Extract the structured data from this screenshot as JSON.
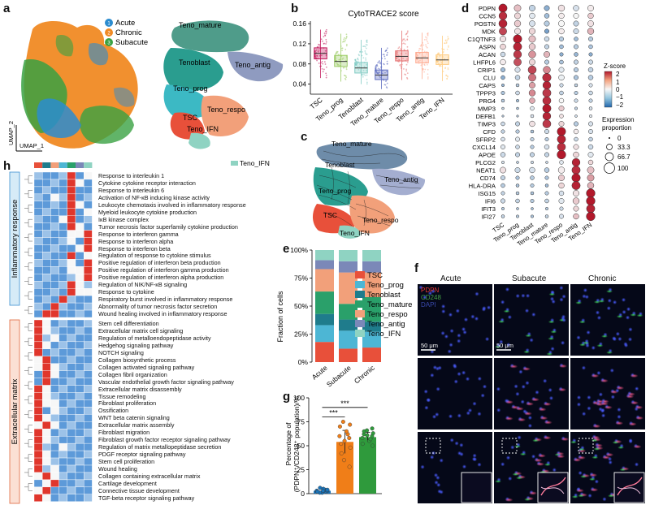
{
  "panels": {
    "a": "a",
    "b": "b",
    "c": "c",
    "d": "d",
    "e": "e",
    "f": "f",
    "g": "g",
    "h": "h"
  },
  "panel_a": {
    "legend": [
      "Acute",
      "Chronic",
      "Subacute"
    ],
    "legend_marks": [
      "1",
      "2",
      "3"
    ],
    "legend_colors": [
      "#2b8ccf",
      "#f08a24",
      "#3aa142"
    ],
    "clusters": [
      "Teno_mature",
      "Tenoblast",
      "Teno_antig",
      "Teno_prog",
      "TSC",
      "Teno_respo",
      "Teno_IFN"
    ],
    "axis_x": "UMAP_1",
    "axis_y": "UMAP_2"
  },
  "panel_c": {
    "clusters": [
      "Teno_mature",
      "Tenoblast",
      "Teno_antig",
      "Teno_prog",
      "TSC",
      "Teno_respo",
      "Teno_IFN"
    ]
  },
  "chart_b": {
    "type": "box",
    "title": "CytoTRACE2 score",
    "categories": [
      "TSC",
      "Teno_prog",
      "Tenoblast",
      "Teno_mature",
      "Teno_respo",
      "Teno_antig",
      "Teno_IFN"
    ],
    "colors": [
      "#c2185b",
      "#9ccc65",
      "#80cbc4",
      "#5c6bc0",
      "#e57373",
      "#ffab91",
      "#ffcc80"
    ],
    "median": [
      0.101,
      0.085,
      0.072,
      0.058,
      0.095,
      0.092,
      0.088
    ],
    "q1": [
      0.09,
      0.075,
      0.062,
      0.049,
      0.086,
      0.082,
      0.079
    ],
    "q3": [
      0.112,
      0.097,
      0.083,
      0.068,
      0.106,
      0.103,
      0.098
    ],
    "whisker_low": [
      0.052,
      0.045,
      0.04,
      0.03,
      0.048,
      0.05,
      0.046
    ],
    "whisker_high": [
      0.148,
      0.14,
      0.128,
      0.112,
      0.146,
      0.142,
      0.136
    ],
    "yticks": [
      0.04,
      0.08,
      0.12,
      0.16
    ],
    "ylim": [
      0.02,
      0.165
    ]
  },
  "chart_d": {
    "type": "dotplot",
    "genes": [
      "PDPN",
      "CCN5",
      "POSTN",
      "MDK",
      "C1QTNF3",
      "ASPN",
      "ACAN",
      "LHFPL6",
      "CRIP1",
      "CLU",
      "CAPS",
      "TPPP3",
      "PRG4",
      "MMP3",
      "DEFB1",
      "TIMP3",
      "CFD",
      "SFRP2",
      "CXCL14",
      "APOE",
      "PLCG2",
      "NEAT1",
      "CD74",
      "HLA-DRA",
      "ISG15",
      "IFI6",
      "IFIT3",
      "IFI27"
    ],
    "clusters": [
      "TSC",
      "Teno_prog",
      "Tenoblast",
      "Teno_mature",
      "Teno_respo",
      "Teno_antig",
      "Teno_IFN"
    ],
    "zscore": [
      [
        2.0,
        0.5,
        -0.5,
        -1.0,
        0.2,
        -0.3,
        0.1
      ],
      [
        1.8,
        0.3,
        -0.2,
        -0.8,
        0.1,
        0.0,
        0.4
      ],
      [
        1.9,
        0.4,
        -0.3,
        -0.6,
        0.0,
        -0.5,
        0.2
      ],
      [
        1.6,
        0.2,
        0.3,
        -1.2,
        0.1,
        -0.4,
        0.6
      ],
      [
        0.2,
        2.0,
        0.5,
        -0.4,
        -0.6,
        -0.8,
        -0.6
      ],
      [
        0.3,
        1.9,
        0.4,
        -0.5,
        -0.8,
        -0.6,
        -0.7
      ],
      [
        -0.4,
        1.7,
        0.9,
        0.6,
        -1.0,
        -0.9,
        -1.0
      ],
      [
        0.1,
        1.5,
        0.3,
        -0.6,
        -0.7,
        -0.5,
        -0.4
      ],
      [
        -0.8,
        -0.3,
        1.6,
        1.0,
        -0.2,
        -0.6,
        -0.5
      ],
      [
        -1.0,
        -0.5,
        1.2,
        1.8,
        -0.1,
        -0.7,
        -0.6
      ],
      [
        -0.9,
        -0.6,
        0.8,
        1.9,
        -0.4,
        -0.5,
        -0.3
      ],
      [
        -0.7,
        -0.4,
        1.0,
        1.7,
        -0.5,
        -0.6,
        -0.4
      ],
      [
        -0.6,
        -0.8,
        0.7,
        1.8,
        0.0,
        -0.4,
        -0.5
      ],
      [
        -0.5,
        -0.7,
        -0.2,
        2.0,
        0.4,
        -0.5,
        -0.3
      ],
      [
        -0.6,
        -0.6,
        -0.3,
        1.9,
        0.2,
        -0.4,
        -0.2
      ],
      [
        -0.4,
        -0.5,
        0.2,
        1.7,
        0.3,
        -0.6,
        -0.3
      ],
      [
        -0.5,
        -0.6,
        -0.7,
        -0.4,
        2.0,
        0.1,
        -0.3
      ],
      [
        -0.3,
        -0.2,
        -0.5,
        -0.6,
        1.9,
        -0.4,
        -0.5
      ],
      [
        -0.2,
        -0.4,
        -0.6,
        -0.3,
        1.8,
        0.2,
        -0.4
      ],
      [
        -0.4,
        -0.5,
        -0.5,
        -0.5,
        2.0,
        0.3,
        -0.2
      ],
      [
        -0.3,
        -0.6,
        -0.4,
        -0.5,
        -0.2,
        1.9,
        0.3
      ],
      [
        0.2,
        -0.4,
        -0.3,
        -0.6,
        0.1,
        1.8,
        0.5
      ],
      [
        -0.5,
        -0.7,
        -0.6,
        -0.7,
        0.4,
        2.0,
        0.8
      ],
      [
        -0.6,
        -0.7,
        -0.6,
        -0.8,
        0.3,
        1.9,
        0.6
      ],
      [
        -0.5,
        -0.6,
        -0.7,
        -0.6,
        -0.3,
        0.2,
        2.0
      ],
      [
        -0.4,
        -0.5,
        -0.6,
        -0.5,
        -0.2,
        0.4,
        2.0
      ],
      [
        -0.6,
        -0.7,
        -0.8,
        -0.6,
        -0.4,
        0.3,
        1.9
      ],
      [
        -0.5,
        -0.6,
        -0.7,
        -0.5,
        -0.3,
        0.5,
        2.0
      ]
    ],
    "proportion": [
      [
        90,
        70,
        60,
        50,
        65,
        55,
        60
      ],
      [
        85,
        60,
        55,
        45,
        55,
        50,
        55
      ],
      [
        88,
        65,
        58,
        50,
        60,
        50,
        60
      ],
      [
        80,
        60,
        62,
        40,
        55,
        50,
        65
      ],
      [
        60,
        92,
        70,
        45,
        40,
        35,
        40
      ],
      [
        55,
        90,
        65,
        40,
        35,
        40,
        35
      ],
      [
        45,
        85,
        75,
        60,
        30,
        35,
        30
      ],
      [
        55,
        80,
        60,
        40,
        35,
        40,
        40
      ],
      [
        40,
        50,
        88,
        75,
        50,
        40,
        45
      ],
      [
        35,
        45,
        80,
        92,
        55,
        40,
        45
      ],
      [
        20,
        25,
        60,
        85,
        30,
        25,
        30
      ],
      [
        30,
        35,
        65,
        90,
        35,
        30,
        35
      ],
      [
        25,
        20,
        55,
        88,
        45,
        30,
        30
      ],
      [
        15,
        15,
        35,
        90,
        50,
        20,
        25
      ],
      [
        10,
        10,
        25,
        85,
        35,
        15,
        20
      ],
      [
        35,
        40,
        55,
        88,
        50,
        40,
        40
      ],
      [
        30,
        30,
        25,
        40,
        92,
        45,
        40
      ],
      [
        35,
        40,
        30,
        30,
        90,
        35,
        35
      ],
      [
        40,
        35,
        30,
        45,
        88,
        50,
        45
      ],
      [
        45,
        40,
        40,
        40,
        95,
        55,
        50
      ],
      [
        20,
        15,
        20,
        15,
        35,
        85,
        45
      ],
      [
        60,
        50,
        55,
        45,
        65,
        90,
        70
      ],
      [
        40,
        30,
        35,
        30,
        60,
        92,
        70
      ],
      [
        35,
        25,
        30,
        25,
        55,
        90,
        65
      ],
      [
        30,
        25,
        25,
        30,
        45,
        60,
        95
      ],
      [
        40,
        35,
        30,
        35,
        50,
        65,
        95
      ],
      [
        20,
        15,
        15,
        20,
        30,
        50,
        90
      ],
      [
        25,
        20,
        20,
        25,
        40,
        55,
        95
      ]
    ],
    "legend_title": "Z-score",
    "legend_ticks": [
      "2",
      "1",
      "0",
      "−1",
      "−2"
    ],
    "size_title_1": "Expression",
    "size_title_2": "proportion",
    "size_labels": [
      "0",
      "33.3",
      "66.7",
      "100"
    ]
  },
  "chart_e": {
    "type": "stacked-bar",
    "categories": [
      "Acute",
      "Subacute",
      "Chronic"
    ],
    "series": [
      {
        "name": "TSC",
        "color": "#e8503a",
        "values": [
          0.18,
          0.12,
          0.13
        ]
      },
      {
        "name": "Teno_prog",
        "color": "#4db6d4",
        "values": [
          0.15,
          0.16,
          0.14
        ]
      },
      {
        "name": "Tenoblast",
        "color": "#1f7c8c",
        "values": [
          0.1,
          0.1,
          0.09
        ]
      },
      {
        "name": "Teno_mature",
        "color": "#2aa06a",
        "values": [
          0.2,
          0.14,
          0.22
        ]
      },
      {
        "name": "Teno_respo",
        "color": "#f2a07a",
        "values": [
          0.2,
          0.28,
          0.22
        ]
      },
      {
        "name": "Teno_antig",
        "color": "#7b88b8",
        "values": [
          0.08,
          0.1,
          0.1
        ]
      },
      {
        "name": "Teno_IFN",
        "color": "#8fd3c2",
        "values": [
          0.09,
          0.1,
          0.1
        ]
      }
    ],
    "ylabel": "Fraction of cells",
    "yticks": [
      "0%",
      "25%",
      "50%",
      "75%",
      "100%"
    ]
  },
  "chart_g": {
    "type": "bar-scatter",
    "categories": [
      "Acute",
      "Subacute",
      "Chronic"
    ],
    "values": [
      3,
      54,
      59
    ],
    "errors": [
      2,
      12,
      5
    ],
    "colors": [
      "#1a73b8",
      "#f07e18",
      "#2f9a3c"
    ],
    "points": [
      [
        1,
        2,
        3,
        4,
        5,
        2,
        3,
        6,
        1,
        4,
        2,
        3
      ],
      [
        28,
        35,
        42,
        48,
        52,
        55,
        58,
        60,
        62,
        65,
        70,
        72,
        75
      ],
      [
        50,
        52,
        55,
        57,
        58,
        60,
        61,
        62,
        63,
        65,
        66,
        68
      ]
    ],
    "ylim": [
      0,
      100
    ],
    "yticks": [
      "0",
      "25",
      "50",
      "75",
      "100"
    ],
    "ylabel_1": "Percentage of",
    "ylabel_2": "(PDPN⁺/CD248⁺ population)/%",
    "sig": [
      "***",
      "***"
    ]
  },
  "panel_f": {
    "columns": [
      "Acute",
      "Subacute",
      "Chronic"
    ],
    "channels": [
      "PDPN",
      "CD248",
      "DAPI"
    ],
    "channel_colors": [
      "#e53935",
      "#43a047",
      "#3949ab"
    ],
    "scalebar": "50 μm"
  },
  "panel_h": {
    "legend": [
      {
        "name": "TSC",
        "color": "#e8503a"
      },
      {
        "name": "Tenoblast",
        "color": "#1f7c8c"
      },
      {
        "name": "Teno_respo",
        "color": "#f2a07a"
      },
      {
        "name": "Teno_prog",
        "color": "#4db6d4"
      },
      {
        "name": "Teno_mature",
        "color": "#2aa06a"
      },
      {
        "name": "Teno_antig",
        "color": "#7b88b8"
      },
      {
        "name": "Teno_IFN",
        "color": "#8fd3c2"
      }
    ],
    "group1": "Inflammatory response",
    "group2": "Extracellular matrix",
    "pathways1": [
      "Response to interleukin 1",
      "Cytokine cytokine receptor interaction",
      "Response to interleukin 6",
      "Activation of NF-κB inducing kinase activity",
      "Leukocyte chemotaxis involved in inflammatory response",
      "Myeloid leukocyte cytokine production",
      "IκB kinase complex",
      "Tumor necrosis factor superfamily cytokine production",
      "Response to interferon gamma",
      "Response to interferon alpha",
      "Response to interferon beta",
      "Regulation of response to cytokine stimulus",
      "Positive regulation of interferon beta production",
      "Positive regulation of interferon gamma production",
      "Positive regulation of interferon alpha production",
      "Regulation of NIK/NF-κB signaling",
      "Response to cytokine",
      "Respiratory burst involved in inflammatory response",
      "Abnormality of tumor necrosis factor secretion",
      "Wound healing involved in inflammatory response"
    ],
    "pathways2": [
      "Stem cell differentiation",
      "Extracellular matrix cell signaling",
      "Regulation of metalloendopeptidase activity",
      "Hedgehog signaling pathway",
      "NOTCH signaling",
      "Collagen biosynthetic process",
      "Collagen activated signaling pathway",
      "Collagen fibril organization",
      "Vascular endothelial growth factor signaling pathway",
      "Extracellular matrix disassembly",
      "Tissue remodeling",
      "Fibroblast proliferation",
      "Ossification",
      "WNT beta catenin signaling",
      "Extracellular matrix assembly",
      "Fibroblast migration",
      "Fibroblast growth factor receptor signaling pathway",
      "Regulation of matrix metallopeptidase secretion",
      "PDGF receptor signaling pathway",
      "Stem cell proliferation",
      "Wound healing",
      "Collagen containing extracellular matrix",
      "Cartilage development",
      "Connective tissue development",
      "TGF-beta receptor signaling pathway"
    ],
    "heat1": [
      [
        0,
        0,
        0,
        0,
        2,
        0,
        1
      ],
      [
        0,
        0,
        0,
        0,
        2,
        1,
        0
      ],
      [
        0,
        0,
        0,
        0,
        2,
        0,
        0
      ],
      [
        0,
        0,
        1,
        0,
        2,
        0,
        0
      ],
      [
        0,
        0,
        0,
        0,
        2,
        1,
        0
      ],
      [
        0,
        0,
        0,
        0,
        2,
        0,
        1
      ],
      [
        0,
        0,
        0,
        1,
        2,
        0,
        0
      ],
      [
        0,
        0,
        0,
        0,
        2,
        1,
        0
      ],
      [
        0,
        0,
        0,
        0,
        1,
        1,
        2
      ],
      [
        0,
        0,
        0,
        0,
        1,
        0,
        2
      ],
      [
        0,
        0,
        0,
        0,
        0,
        1,
        2
      ],
      [
        0,
        0,
        0,
        0,
        2,
        0,
        1
      ],
      [
        0,
        0,
        0,
        0,
        1,
        0,
        2
      ],
      [
        0,
        0,
        0,
        0,
        1,
        1,
        2
      ],
      [
        0,
        0,
        0,
        0,
        0,
        1,
        2
      ],
      [
        0,
        0,
        0,
        0,
        2,
        1,
        0
      ],
      [
        0,
        0,
        0,
        0,
        2,
        1,
        1
      ],
      [
        0,
        0,
        0,
        2,
        0,
        0,
        0
      ],
      [
        0,
        0,
        2,
        0,
        0,
        0,
        0
      ],
      [
        0,
        2,
        2,
        0,
        0,
        0,
        0
      ]
    ],
    "heat2": [
      [
        2,
        1,
        0,
        0,
        0,
        0,
        0
      ],
      [
        2,
        1,
        0,
        0,
        0,
        0,
        0
      ],
      [
        2,
        0,
        1,
        0,
        0,
        0,
        0
      ],
      [
        2,
        1,
        0,
        0,
        0,
        0,
        0
      ],
      [
        2,
        0,
        0,
        0,
        0,
        0,
        0
      ],
      [
        1,
        2,
        0,
        0,
        0,
        0,
        0
      ],
      [
        1,
        2,
        1,
        0,
        0,
        0,
        0
      ],
      [
        0,
        2,
        1,
        0,
        0,
        0,
        0
      ],
      [
        0,
        2,
        0,
        0,
        0,
        0,
        0
      ],
      [
        2,
        1,
        0,
        0,
        0,
        0,
        0
      ],
      [
        2,
        1,
        0,
        0,
        0,
        0,
        0
      ],
      [
        2,
        1,
        1,
        0,
        0,
        0,
        0
      ],
      [
        2,
        0,
        1,
        0,
        0,
        0,
        0
      ],
      [
        2,
        1,
        0,
        0,
        0,
        0,
        0
      ],
      [
        1,
        2,
        1,
        0,
        0,
        0,
        0
      ],
      [
        2,
        1,
        0,
        0,
        0,
        0,
        0
      ],
      [
        2,
        1,
        0,
        0,
        0,
        0,
        0
      ],
      [
        2,
        0,
        0,
        1,
        0,
        0,
        0
      ],
      [
        2,
        1,
        0,
        0,
        0,
        0,
        0
      ],
      [
        2,
        1,
        0,
        0,
        0,
        0,
        0
      ],
      [
        2,
        0,
        1,
        0,
        0,
        0,
        0
      ],
      [
        1,
        2,
        1,
        0,
        0,
        0,
        0
      ],
      [
        0,
        1,
        2,
        0,
        0,
        0,
        0
      ],
      [
        1,
        2,
        0,
        0,
        0,
        0,
        0
      ],
      [
        2,
        1,
        0,
        0,
        0,
        0,
        0
      ]
    ]
  }
}
